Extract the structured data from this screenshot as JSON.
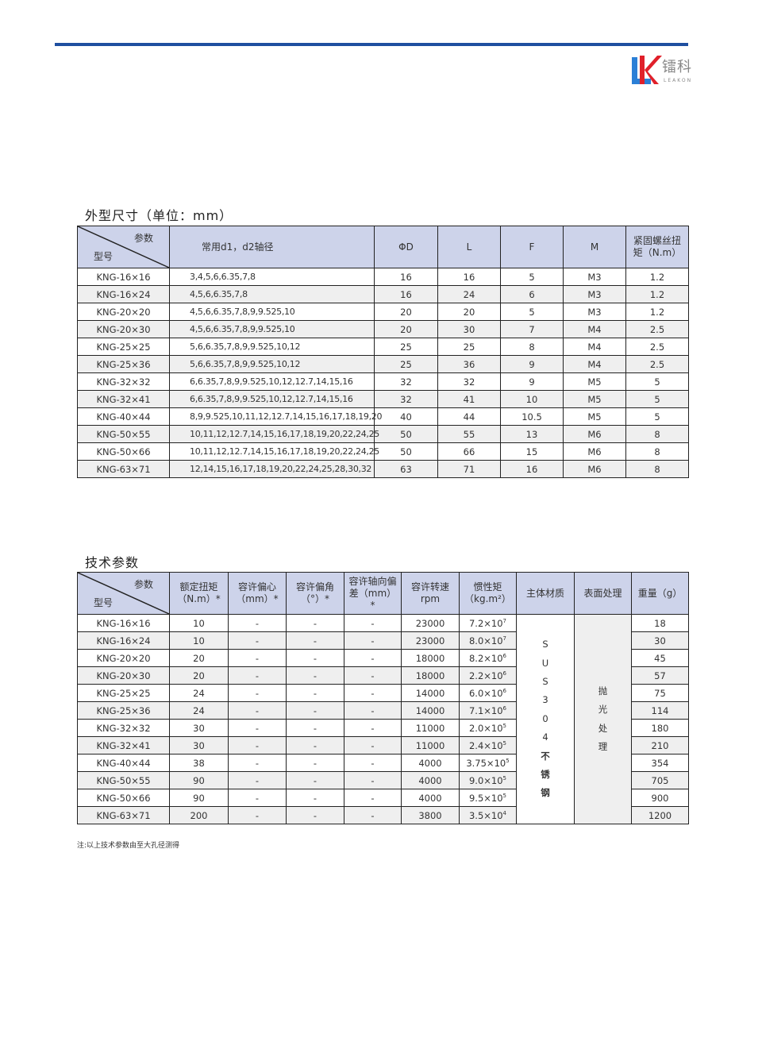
{
  "brand": {
    "logo_letters": "LK",
    "name_cn": "镭科",
    "name_en": "LEAKON",
    "accent": "#1f4fa0",
    "logo_red": "#e0202a",
    "logo_blue": "#2b7fd6"
  },
  "dimensions": {
    "title": "外型尺寸（单位：mm）",
    "header": {
      "param": "参数",
      "model": "型号",
      "cols": [
        "常用d1，d2轴径",
        "ΦD",
        "L",
        "F",
        "M",
        "紧固螺丝扭矩（N.m）"
      ]
    },
    "rows": [
      [
        "KNG-16×16",
        "3,4,5,6,6.35,7,8",
        "16",
        "16",
        "5",
        "M3",
        "1.2"
      ],
      [
        "KNG-16×24",
        "4,5,6,6.35,7,8",
        "16",
        "24",
        "6",
        "M3",
        "1.2"
      ],
      [
        "KNG-20×20",
        "4,5,6,6.35,7,8,9,9.525,10",
        "20",
        "20",
        "5",
        "M3",
        "1.2"
      ],
      [
        "KNG-20×30",
        "4,5,6,6.35,7,8,9,9.525,10",
        "20",
        "30",
        "7",
        "M4",
        "2.5"
      ],
      [
        "KNG-25×25",
        "5,6,6.35,7,8,9,9.525,10,12",
        "25",
        "25",
        "8",
        "M4",
        "2.5"
      ],
      [
        "KNG-25×36",
        "5,6,6.35,7,8,9,9.525,10,12",
        "25",
        "36",
        "9",
        "M4",
        "2.5"
      ],
      [
        "KNG-32×32",
        "6,6.35,7,8,9,9.525,10,12,12.7,14,15,16",
        "32",
        "32",
        "9",
        "M5",
        "5"
      ],
      [
        "KNG-32×41",
        "6,6.35,7,8,9,9.525,10,12,12.7,14,15,16",
        "32",
        "41",
        "10",
        "M5",
        "5"
      ],
      [
        "KNG-40×44",
        "8,9,9.525,10,11,12,12.7,14,15,16,17,18,19,20",
        "40",
        "44",
        "10.5",
        "M5",
        "5"
      ],
      [
        "KNG-50×55",
        "10,11,12,12.7,14,15,16,17,18,19,20,22,24,25",
        "50",
        "55",
        "13",
        "M6",
        "8"
      ],
      [
        "KNG-50×66",
        "10,11,12,12.7,14,15,16,17,18,19,20,22,24,25",
        "50",
        "66",
        "15",
        "M6",
        "8"
      ],
      [
        "KNG-63×71",
        "12,14,15,16,17,18,19,20,22,24,25,28,30,32",
        "63",
        "71",
        "16",
        "M6",
        "8"
      ]
    ]
  },
  "technical": {
    "title": "技术参数",
    "header": {
      "param": "参数",
      "model": "型号",
      "cols": [
        "额定扭矩（N.m）*",
        "容许偏心（mm）*",
        "容许偏角（°）*",
        "容许轴向偏差（mm）*",
        "容许转速rpm",
        "惯性矩（kg.m²）",
        "主体材质",
        "表面处理",
        "重量（g）"
      ]
    },
    "material": "SUS304不锈钢",
    "surface": "抛光处理",
    "rows": [
      {
        "model": "KNG-16×16",
        "torque": "10",
        "ecc": "-",
        "ang": "-",
        "axial": "-",
        "rpm": "23000",
        "inertia": "7.2×10",
        "exp": "7",
        "weight": "18"
      },
      {
        "model": "KNG-16×24",
        "torque": "10",
        "ecc": "-",
        "ang": "-",
        "axial": "-",
        "rpm": "23000",
        "inertia": "8.0×10",
        "exp": "7",
        "weight": "30"
      },
      {
        "model": "KNG-20×20",
        "torque": "20",
        "ecc": "-",
        "ang": "-",
        "axial": "-",
        "rpm": "18000",
        "inertia": "8.2×10",
        "exp": "6",
        "weight": "45"
      },
      {
        "model": "KNG-20×30",
        "torque": "20",
        "ecc": "-",
        "ang": "-",
        "axial": "-",
        "rpm": "18000",
        "inertia": "2.2×10",
        "exp": "6",
        "weight": "57"
      },
      {
        "model": "KNG-25×25",
        "torque": "24",
        "ecc": "-",
        "ang": "-",
        "axial": "-",
        "rpm": "14000",
        "inertia": "6.0×10",
        "exp": "6",
        "weight": "75"
      },
      {
        "model": "KNG-25×36",
        "torque": "24",
        "ecc": "-",
        "ang": "-",
        "axial": "-",
        "rpm": "14000",
        "inertia": "7.1×10",
        "exp": "6",
        "weight": "114"
      },
      {
        "model": "KNG-32×32",
        "torque": "30",
        "ecc": "-",
        "ang": "-",
        "axial": "-",
        "rpm": "11000",
        "inertia": "2.0×10",
        "exp": "5",
        "weight": "180"
      },
      {
        "model": "KNG-32×41",
        "torque": "30",
        "ecc": "-",
        "ang": "-",
        "axial": "-",
        "rpm": "11000",
        "inertia": "2.4×10",
        "exp": "5",
        "weight": "210"
      },
      {
        "model": "KNG-40×44",
        "torque": "38",
        "ecc": "-",
        "ang": "-",
        "axial": "-",
        "rpm": "4000",
        "inertia": "3.75×10",
        "exp": "5",
        "weight": "354"
      },
      {
        "model": "KNG-50×55",
        "torque": "90",
        "ecc": "-",
        "ang": "-",
        "axial": "-",
        "rpm": "4000",
        "inertia": "9.0×10",
        "exp": "5",
        "weight": "705"
      },
      {
        "model": "KNG-50×66",
        "torque": "90",
        "ecc": "-",
        "ang": "-",
        "axial": "-",
        "rpm": "4000",
        "inertia": "9.5×10",
        "exp": "5",
        "weight": "900"
      },
      {
        "model": "KNG-63×71",
        "torque": "200",
        "ecc": "-",
        "ang": "-",
        "axial": "-",
        "rpm": "3800",
        "inertia": "3.5×10",
        "exp": "4",
        "weight": "1200"
      }
    ],
    "note": "注:以上技术参数由至大孔径测得"
  }
}
